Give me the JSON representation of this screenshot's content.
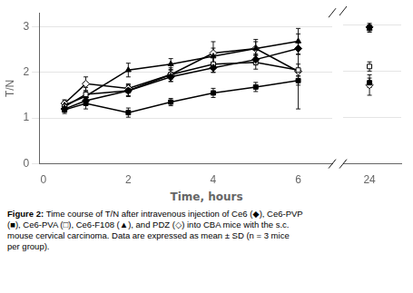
{
  "chart_data": [
    {
      "type": "line",
      "ylabel": "T/N",
      "xlabel": "Time, hours",
      "annotations": [
        "Figure 2: ",
        "Time course of T/N after intravenous injection of Ce6 (◆), Ce6-PVP\n(■), Ce6-PVA (□), Ce6-F108 (▲), and PDZ (◇) into CBA mice with the s.c.\nmouse cervical carcinoma. Data are expressed as mean ± SD (n = 3 mice\nper group)."
      ],
      "x": [
        0.5,
        1,
        2,
        3,
        4,
        5,
        6
      ],
      "xlim": [
        -0.1,
        6.8
      ],
      "xticks": [
        0,
        2,
        4,
        6
      ],
      "ylim": [
        0,
        3.3
      ],
      "yticks": [
        0,
        1,
        2,
        3
      ],
      "grid": "y",
      "series": [
        {
          "name": "Ce6",
          "color": "#000000",
          "marker": "diamond",
          "values": [
            1.2,
            1.38,
            1.6,
            1.9,
            2.1,
            2.28,
            2.52
          ],
          "yerr": [
            0.07,
            0.09,
            0.11,
            0.1,
            0.1,
            0.12,
            0.13
          ]
        },
        {
          "name": "Ce6-PVP",
          "color": "#000000",
          "marker": "square",
          "values": [
            1.18,
            1.32,
            1.12,
            1.35,
            1.55,
            1.68,
            1.82
          ],
          "yerr": [
            0.08,
            0.12,
            0.1,
            0.08,
            0.1,
            0.1,
            0.1
          ]
        },
        {
          "name": "Ce6-PVA",
          "color": "#000000",
          "marker": "open square",
          "values": [
            1.25,
            1.52,
            1.6,
            1.95,
            2.18,
            2.22,
            2.05
          ],
          "yerr": [
            0.1,
            0.15,
            0.13,
            0.15,
            0.18,
            0.15,
            0.13
          ]
        },
        {
          "name": "Ce6-F108",
          "color": "#000000",
          "marker": "triangle",
          "values": [
            1.28,
            1.48,
            2.05,
            2.18,
            2.35,
            2.52,
            2.68
          ],
          "yerr": [
            0.1,
            0.12,
            0.15,
            0.12,
            0.18,
            0.15,
            0.28
          ]
        },
        {
          "name": "PDZ",
          "color": "#000000",
          "marker": "open diamond",
          "values": [
            1.32,
            1.75,
            1.65,
            1.95,
            2.42,
            2.52,
            2.02
          ],
          "yerr": [
            0.08,
            0.15,
            0.1,
            0.1,
            0.25,
            0.2,
            0.82
          ]
        }
      ]
    },
    {
      "type": "line",
      "tick_labels": "x",
      "x": [
        24
      ],
      "xlim": [
        22.5,
        25.8
      ],
      "xticks": [
        24
      ],
      "ylim": [
        0,
        3.3
      ],
      "yticks": [
        0,
        1,
        2,
        3
      ],
      "grid": "y",
      "series": [
        {
          "name": "Ce6",
          "color": "#000000",
          "marker": "diamond",
          "values": [
            2.95
          ],
          "yerr": [
            0.08
          ]
        },
        {
          "name": "Ce6-PVP",
          "color": "#000000",
          "marker": "square",
          "values": [
            1.75
          ],
          "yerr": [
            0.1
          ]
        },
        {
          "name": "Ce6-PVA",
          "color": "#000000",
          "marker": "open square",
          "values": [
            2.1
          ],
          "yerr": [
            0.1
          ]
        },
        {
          "name": "Ce6-F108",
          "color": "#000000",
          "marker": "triangle",
          "values": [
            2.92
          ],
          "yerr": [
            0.08
          ]
        },
        {
          "name": "PDZ",
          "color": "#000000",
          "marker": "open diamond",
          "values": [
            1.7
          ],
          "yerr": [
            0.22
          ]
        }
      ]
    }
  ]
}
